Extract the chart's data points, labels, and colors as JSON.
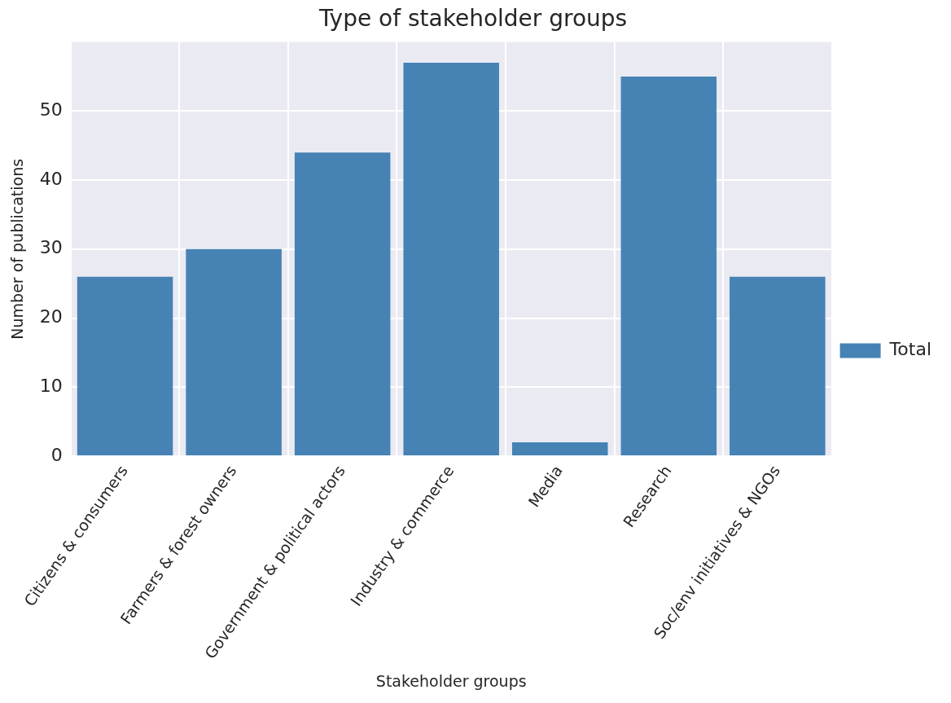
{
  "chart_data": {
    "type": "bar",
    "title": "Type of stakeholder groups",
    "xlabel": "Stakeholder groups",
    "ylabel": "Number of publications",
    "categories": [
      "Citizens & consumers",
      "Farmers & forest owners",
      "Government & political actors",
      "Industry & commerce",
      "Media",
      "Research",
      "Soc/env initiatives & NGOs"
    ],
    "series": [
      {
        "name": "Total",
        "color": "#4682b4",
        "values": [
          26,
          30,
          44,
          57,
          2,
          55,
          26
        ]
      }
    ],
    "ylim": [
      0,
      60
    ],
    "yticks": [
      0,
      10,
      20,
      30,
      40,
      50
    ],
    "grid": true,
    "legend": "right"
  }
}
